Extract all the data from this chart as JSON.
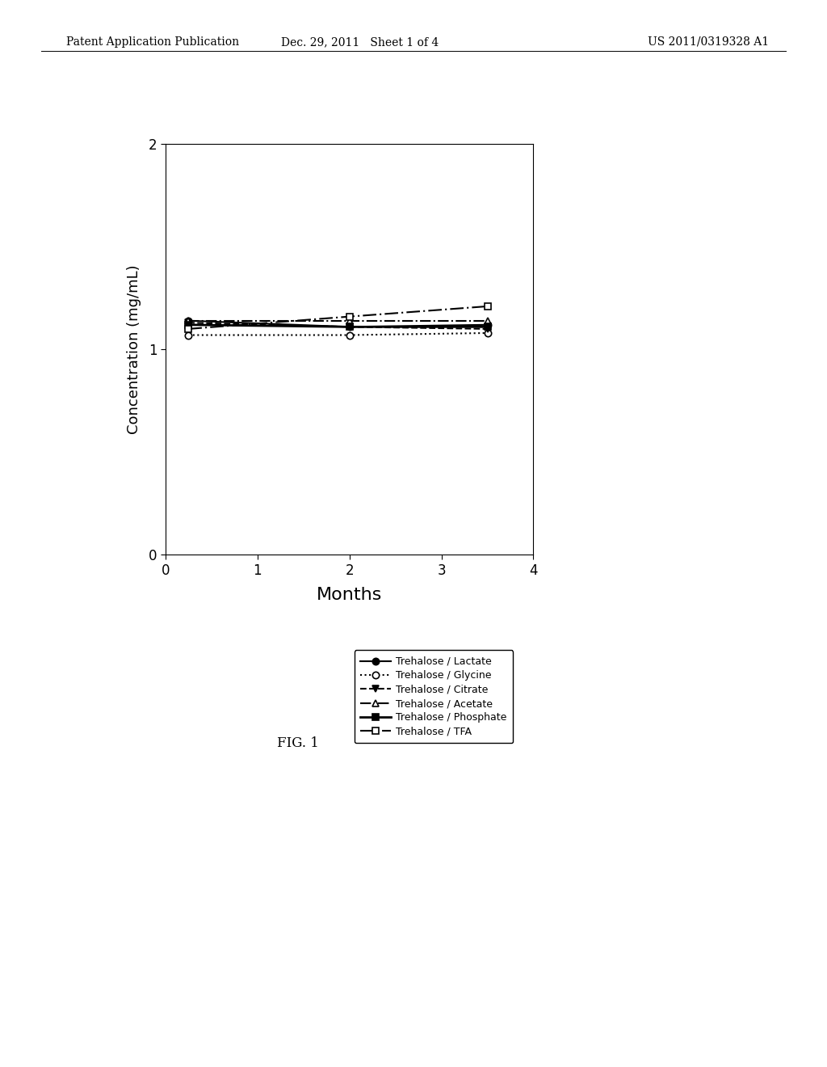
{
  "title": "",
  "xlabel": "Months",
  "ylabel": "Concentration (mg/mL)",
  "xlim": [
    0,
    4
  ],
  "ylim": [
    0,
    2
  ],
  "xticks": [
    0,
    1,
    2,
    3,
    4
  ],
  "yticks": [
    0,
    1,
    2
  ],
  "fig_caption": "FIG. 1",
  "header_left": "Patent Application Publication",
  "header_center": "Dec. 29, 2011   Sheet 1 of 4",
  "header_right": "US 2011/0319328 A1",
  "series": [
    {
      "label": "Trehalose / Lactate",
      "x": [
        0.25,
        2.0,
        3.5
      ],
      "y": [
        1.14,
        1.11,
        1.12
      ],
      "linestyle": "-",
      "marker": "o",
      "markerfacecolor": "black",
      "color": "black",
      "linewidth": 1.5,
      "markersize": 6
    },
    {
      "label": "Trehalose / Glycine",
      "x": [
        0.25,
        2.0,
        3.5
      ],
      "y": [
        1.07,
        1.07,
        1.08
      ],
      "linestyle": ":",
      "marker": "o",
      "markerfacecolor": "white",
      "color": "black",
      "linewidth": 1.5,
      "markersize": 6
    },
    {
      "label": "Trehalose / Citrate",
      "x": [
        0.25,
        2.0,
        3.5
      ],
      "y": [
        1.13,
        1.11,
        1.1
      ],
      "linestyle": "--",
      "marker": "v",
      "markerfacecolor": "black",
      "color": "black",
      "linewidth": 1.5,
      "markersize": 6
    },
    {
      "label": "Trehalose / Acetate",
      "x": [
        0.25,
        2.0,
        3.5
      ],
      "y": [
        1.14,
        1.14,
        1.14
      ],
      "linestyle": "-.",
      "marker": "^",
      "markerfacecolor": "white",
      "color": "black",
      "linewidth": 1.5,
      "markersize": 6
    },
    {
      "label": "Trehalose / Phosphate",
      "x": [
        0.25,
        2.0,
        3.5
      ],
      "y": [
        1.12,
        1.11,
        1.11
      ],
      "linestyle": "-",
      "marker": "s",
      "markerfacecolor": "black",
      "color": "black",
      "linewidth": 2.0,
      "markersize": 6
    },
    {
      "label": "Trehalose / TFA",
      "x": [
        0.25,
        2.0,
        3.5
      ],
      "y": [
        1.1,
        1.16,
        1.21
      ],
      "linestyle": "-.",
      "marker": "s",
      "markerfacecolor": "white",
      "color": "black",
      "linewidth": 1.5,
      "markersize": 6,
      "dash_pattern": [
        8,
        2,
        1,
        2
      ]
    }
  ],
  "background_color": "#ffffff",
  "plot_area_color": "#ffffff",
  "header_fontsize": 10,
  "axis_label_fontsize": 13,
  "xlabel_fontsize": 16,
  "tick_fontsize": 12,
  "legend_fontsize": 9,
  "caption_fontsize": 12
}
